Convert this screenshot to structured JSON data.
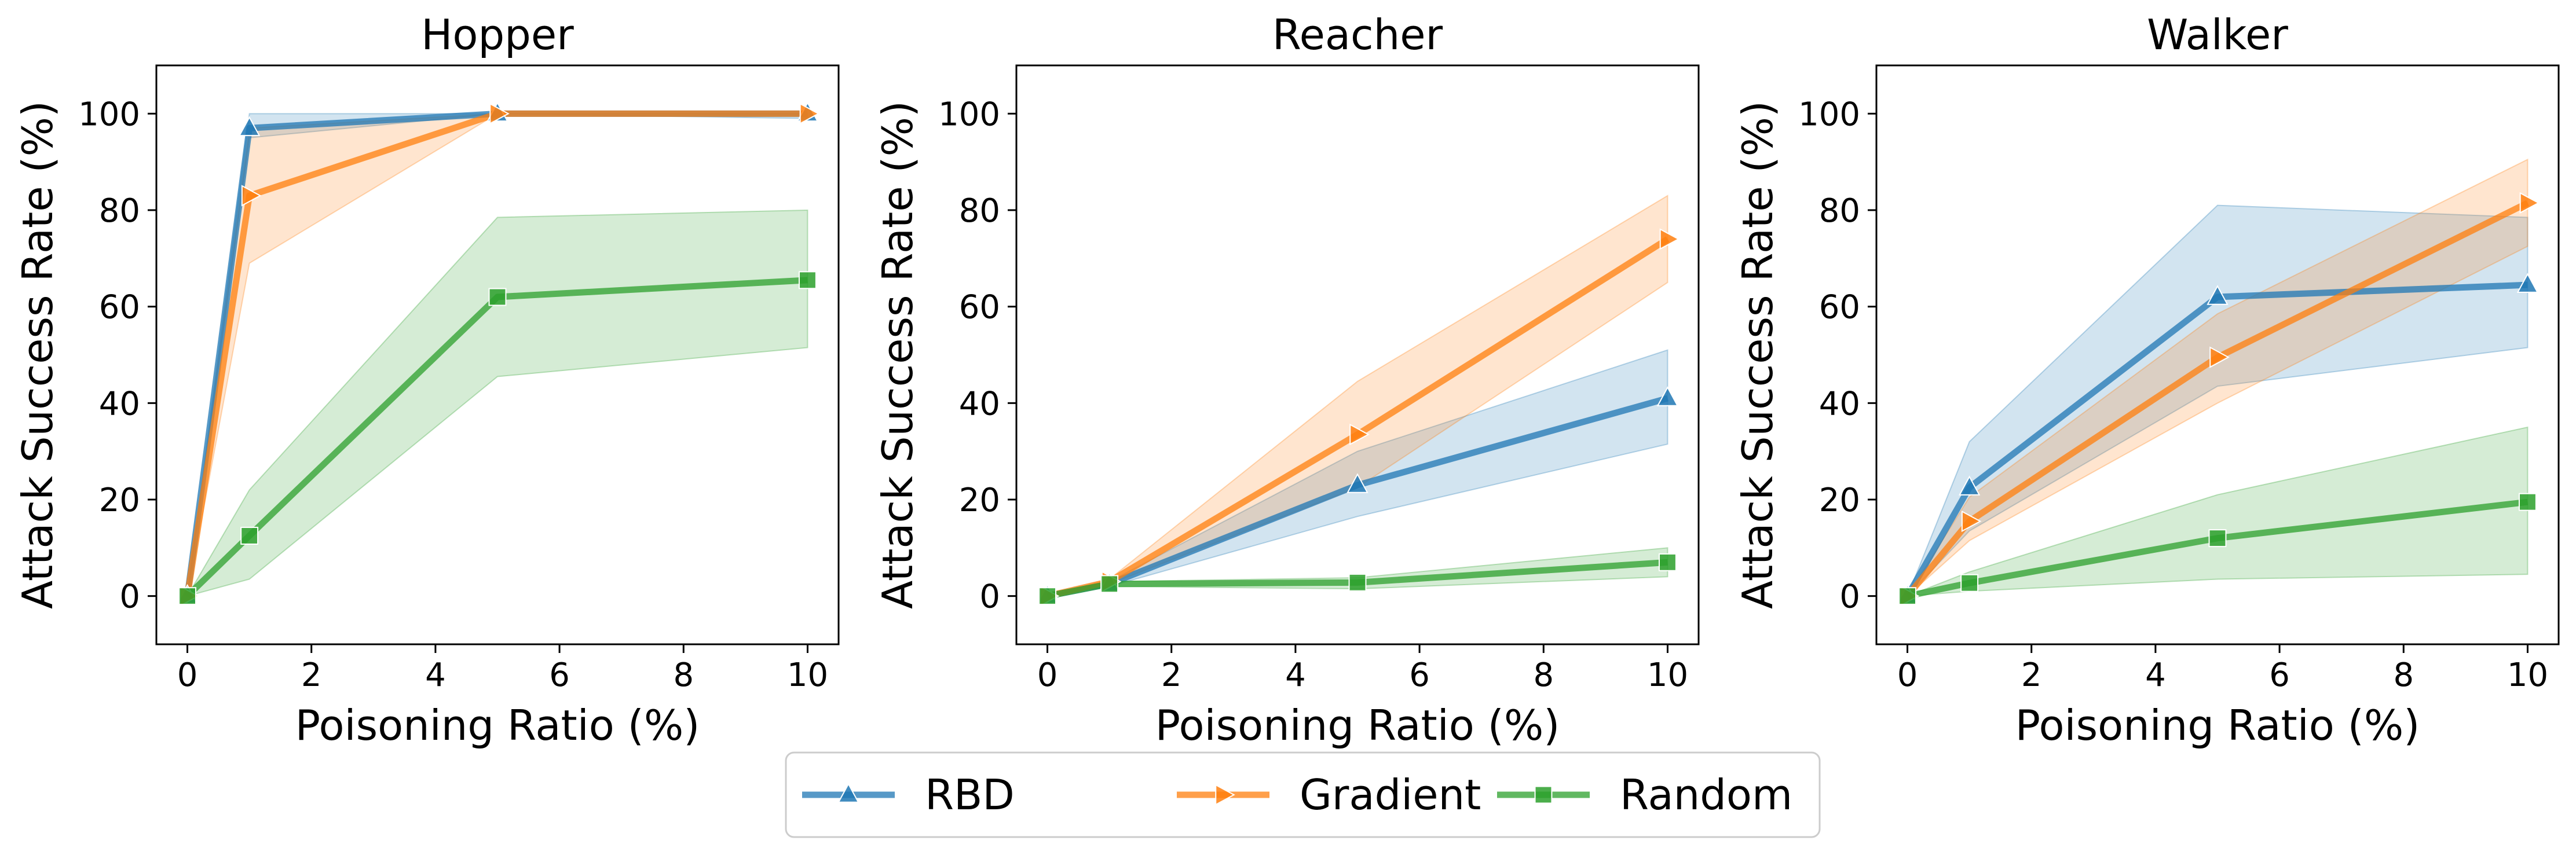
{
  "chart_data": [
    {
      "type": "line",
      "title": "Hopper",
      "xlabel": "Poisoning Ratio (%)",
      "ylabel": "Attack Success Rate (%)",
      "xlim": [
        -0.5,
        10.5
      ],
      "ylim": [
        -10,
        110
      ],
      "xticks": [
        0,
        2,
        4,
        6,
        8,
        10
      ],
      "yticks": [
        0,
        20,
        40,
        60,
        80,
        100
      ],
      "x": [
        0,
        1,
        5,
        10
      ],
      "series": [
        {
          "name": "RBD",
          "values": [
            0,
            97,
            100,
            100
          ],
          "lower": [
            0,
            95,
            100,
            99
          ],
          "upper": [
            0,
            100,
            100,
            100
          ]
        },
        {
          "name": "Gradient",
          "values": [
            0,
            83,
            100,
            100
          ],
          "lower": [
            0,
            69,
            100,
            100
          ],
          "upper": [
            0,
            97,
            100,
            100
          ]
        },
        {
          "name": "Random",
          "values": [
            0,
            12.5,
            62,
            65.5
          ],
          "lower": [
            0,
            3.5,
            45.5,
            51.5
          ],
          "upper": [
            0,
            22,
            78.5,
            80
          ]
        }
      ]
    },
    {
      "type": "line",
      "title": "Reacher",
      "xlabel": "Poisoning Ratio (%)",
      "ylabel": "Attack Success Rate (%)",
      "xlim": [
        -0.5,
        10.5
      ],
      "ylim": [
        -10,
        110
      ],
      "xticks": [
        0,
        2,
        4,
        6,
        8,
        10
      ],
      "yticks": [
        0,
        20,
        40,
        60,
        80,
        100
      ],
      "x": [
        0,
        1,
        5,
        10
      ],
      "series": [
        {
          "name": "RBD",
          "values": [
            0,
            2.5,
            23,
            41
          ],
          "lower": [
            0,
            2,
            16.5,
            31.5
          ],
          "upper": [
            0,
            3,
            30,
            51
          ]
        },
        {
          "name": "Gradient",
          "values": [
            0,
            3,
            33.5,
            74
          ],
          "lower": [
            0,
            2.5,
            22.5,
            65
          ],
          "upper": [
            0,
            3.5,
            44.5,
            83
          ]
        },
        {
          "name": "Random",
          "values": [
            0,
            2.5,
            2.8,
            7
          ],
          "lower": [
            0,
            2,
            1.5,
            4
          ],
          "upper": [
            0,
            3,
            3.8,
            10
          ]
        }
      ]
    },
    {
      "type": "line",
      "title": "Walker",
      "xlabel": "Poisoning Ratio (%)",
      "ylabel": "Attack Success Rate (%)",
      "xlim": [
        -0.5,
        10.5
      ],
      "ylim": [
        -10,
        110
      ],
      "xticks": [
        0,
        2,
        4,
        6,
        8,
        10
      ],
      "yticks": [
        0,
        20,
        40,
        60,
        80,
        100
      ],
      "x": [
        0,
        1,
        5,
        10
      ],
      "series": [
        {
          "name": "RBD",
          "values": [
            0,
            22.5,
            62,
            64.5
          ],
          "lower": [
            0,
            13.5,
            43.5,
            51.5
          ],
          "upper": [
            0,
            32,
            81,
            78.5
          ]
        },
        {
          "name": "Gradient",
          "values": [
            0,
            15.5,
            49.5,
            81.5
          ],
          "lower": [
            0,
            11.5,
            40,
            72.5
          ],
          "upper": [
            0,
            20.5,
            58.5,
            90.5
          ]
        },
        {
          "name": "Random",
          "values": [
            0,
            2.7,
            12,
            19.5
          ],
          "lower": [
            0,
            1,
            3.5,
            4.5
          ],
          "upper": [
            0,
            5,
            21,
            35
          ]
        }
      ]
    }
  ],
  "legend": {
    "items": [
      {
        "name": "RBD",
        "color": "#1f77b4",
        "marker": "triangle-up"
      },
      {
        "name": "Gradient",
        "color": "#ff7f0e",
        "marker": "triangle-right"
      },
      {
        "name": "Random",
        "color": "#2ca02c",
        "marker": "square"
      }
    ]
  },
  "colors": {
    "RBD": "#1f77b4",
    "Gradient": "#ff7f0e",
    "Random": "#2ca02c"
  }
}
